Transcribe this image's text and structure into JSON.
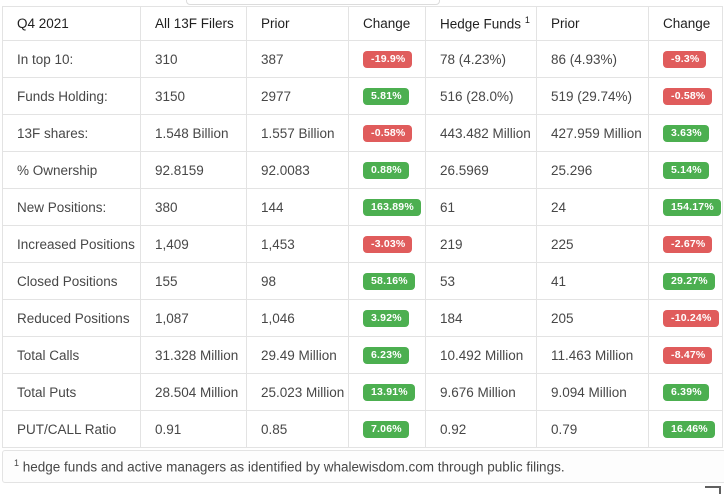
{
  "colors": {
    "positive": "#4caf50",
    "negative": "#e05c5c"
  },
  "table": {
    "columns": [
      "Q4 2021",
      "All 13F Filers",
      "Prior",
      "Change",
      "Hedge Funds",
      "Prior",
      "Change"
    ],
    "hedge_funds_superscript": "1",
    "rows": [
      {
        "label": "In top 10:",
        "all": "310",
        "all_prior": "387",
        "all_change": "-19.9%",
        "hf": "78 (4.23%)",
        "hf_prior": "86 (4.93%)",
        "hf_change": "-9.3%"
      },
      {
        "label": "Funds Holding:",
        "all": "3150",
        "all_prior": "2977",
        "all_change": "5.81%",
        "hf": "516 (28.0%)",
        "hf_prior": "519 (29.74%)",
        "hf_change": "-0.58%"
      },
      {
        "label": "13F shares:",
        "all": "1.548 Billion",
        "all_prior": "1.557 Billion",
        "all_change": "-0.58%",
        "hf": "443.482 Million",
        "hf_prior": "427.959 Million",
        "hf_change": "3.63%"
      },
      {
        "label": "% Ownership",
        "all": "92.8159",
        "all_prior": "92.0083",
        "all_change": "0.88%",
        "hf": "26.5969",
        "hf_prior": "25.296",
        "hf_change": "5.14%"
      },
      {
        "label": "New Positions:",
        "all": "380",
        "all_prior": "144",
        "all_change": "163.89%",
        "hf": "61",
        "hf_prior": "24",
        "hf_change": "154.17%"
      },
      {
        "label": "Increased Positions",
        "all": "1,409",
        "all_prior": "1,453",
        "all_change": "-3.03%",
        "hf": "219",
        "hf_prior": "225",
        "hf_change": "-2.67%"
      },
      {
        "label": "Closed Positions",
        "all": "155",
        "all_prior": "98",
        "all_change": "58.16%",
        "hf": "53",
        "hf_prior": "41",
        "hf_change": "29.27%"
      },
      {
        "label": "Reduced Positions",
        "all": "1,087",
        "all_prior": "1,046",
        "all_change": "3.92%",
        "hf": "184",
        "hf_prior": "205",
        "hf_change": "-10.24%"
      },
      {
        "label": "Total Calls",
        "all": "31.328 Million",
        "all_prior": "29.49 Million",
        "all_change": "6.23%",
        "hf": "10.492 Million",
        "hf_prior": "11.463 Million",
        "hf_change": "-8.47%"
      },
      {
        "label": "Total Puts",
        "all": "28.504 Million",
        "all_prior": "25.023 Million",
        "all_change": "13.91%",
        "hf": "9.676 Million",
        "hf_prior": "9.094 Million",
        "hf_change": "6.39%"
      },
      {
        "label": "PUT/CALL Ratio",
        "all": "0.91",
        "all_prior": "0.85",
        "all_change": "7.06%",
        "hf": "0.92",
        "hf_prior": "0.79",
        "hf_change": "16.46%"
      }
    ]
  },
  "footnote": {
    "superscript": "1",
    "text": " hedge funds and active managers as identified by whalewisdom.com through public filings."
  }
}
